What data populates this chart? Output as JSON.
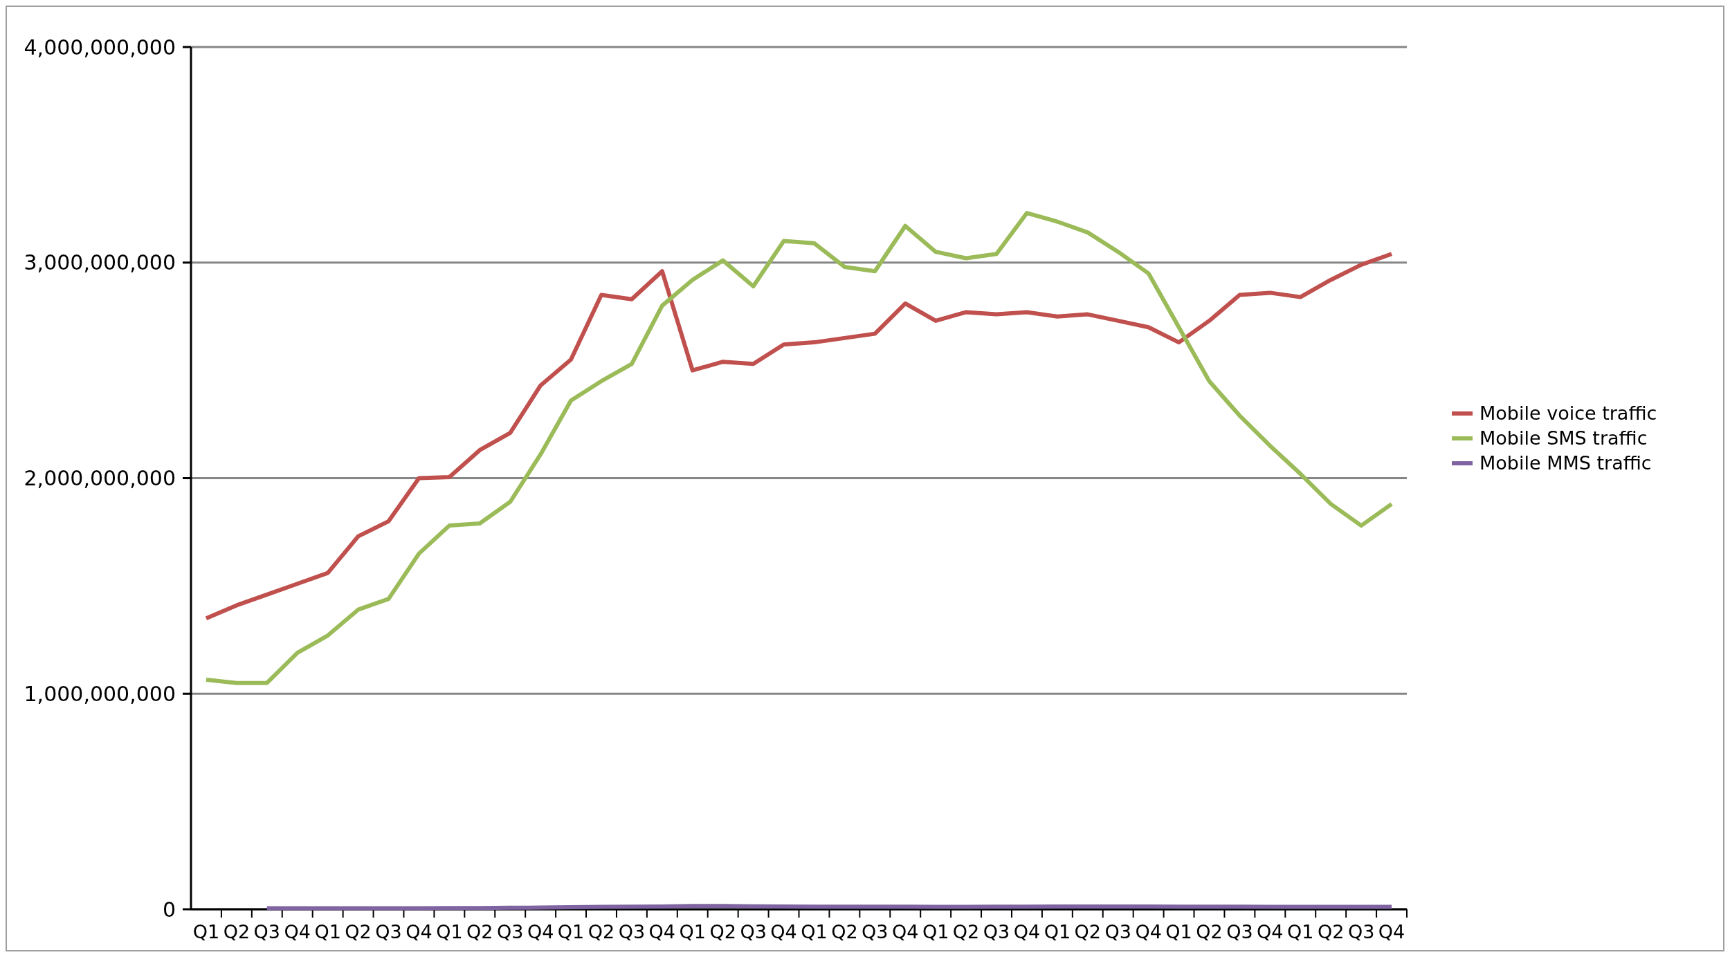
{
  "chart_data": {
    "type": "line",
    "categories": [
      "Q1",
      "Q2",
      "Q3",
      "Q4",
      "Q1",
      "Q2",
      "Q3",
      "Q4",
      "Q1",
      "Q2",
      "Q3",
      "Q4",
      "Q1",
      "Q2",
      "Q3",
      "Q4",
      "Q1",
      "Q2",
      "Q3",
      "Q4",
      "Q1",
      "Q2",
      "Q3",
      "Q4",
      "Q1",
      "Q2",
      "Q3",
      "Q4",
      "Q1",
      "Q2",
      "Q3",
      "Q4",
      "Q1",
      "Q2",
      "Q3",
      "Q4",
      "Q1",
      "Q2",
      "Q3",
      "Q4"
    ],
    "series": [
      {
        "name": "Mobile voice traffic",
        "color": "#c0504d",
        "values": [
          1350000000,
          1410000000,
          1460000000,
          1510000000,
          1560000000,
          1730000000,
          1800000000,
          2000000000,
          2005000000,
          2130000000,
          2210000000,
          2430000000,
          2550000000,
          2850000000,
          2830000000,
          2960000000,
          2500000000,
          2540000000,
          2530000000,
          2620000000,
          2630000000,
          2650000000,
          2670000000,
          2810000000,
          2730000000,
          2770000000,
          2760000000,
          2770000000,
          2750000000,
          2760000000,
          2730000000,
          2700000000,
          2630000000,
          2730000000,
          2850000000,
          2860000000,
          2840000000,
          2920000000,
          2990000000,
          3040000000
        ]
      },
      {
        "name": "Mobile SMS traffic",
        "color": "#9bbb59",
        "values": [
          1065000000,
          1050000000,
          1050000000,
          1190000000,
          1270000000,
          1390000000,
          1440000000,
          1650000000,
          1780000000,
          1790000000,
          1890000000,
          2110000000,
          2360000000,
          2450000000,
          2530000000,
          2800000000,
          2920000000,
          3010000000,
          2890000000,
          3100000000,
          3090000000,
          2980000000,
          2960000000,
          3170000000,
          3050000000,
          3020000000,
          3040000000,
          3230000000,
          3190000000,
          3140000000,
          3050000000,
          2950000000,
          2700000000,
          2450000000,
          2290000000,
          2150000000,
          2020000000,
          1880000000,
          1780000000,
          1880000000
        ]
      },
      {
        "name": "Mobile MMS traffic",
        "color": "#8064a2",
        "values": [
          null,
          null,
          5000000,
          5000000,
          5000000,
          5000000,
          5000000,
          5000000,
          6000000,
          6000000,
          7000000,
          8000000,
          10000000,
          11000000,
          12000000,
          13000000,
          15000000,
          15000000,
          14000000,
          13000000,
          12000000,
          12000000,
          12000000,
          12000000,
          11000000,
          11000000,
          12000000,
          12000000,
          13000000,
          13000000,
          13000000,
          13000000,
          12000000,
          12000000,
          12000000,
          11000000,
          11000000,
          11000000,
          11000000,
          11000000
        ]
      }
    ],
    "ylim": [
      0,
      4000000000
    ],
    "yticks": [
      {
        "value": 0,
        "label": "0"
      },
      {
        "value": 1000000000,
        "label": "1,000,000,000"
      },
      {
        "value": 2000000000,
        "label": "2,000,000,000"
      },
      {
        "value": 3000000000,
        "label": "3,000,000,000"
      },
      {
        "value": 4000000000,
        "label": "4,000,000,000"
      }
    ],
    "grid": "y",
    "legend": "right",
    "marker": "none",
    "line_style": "solid"
  }
}
